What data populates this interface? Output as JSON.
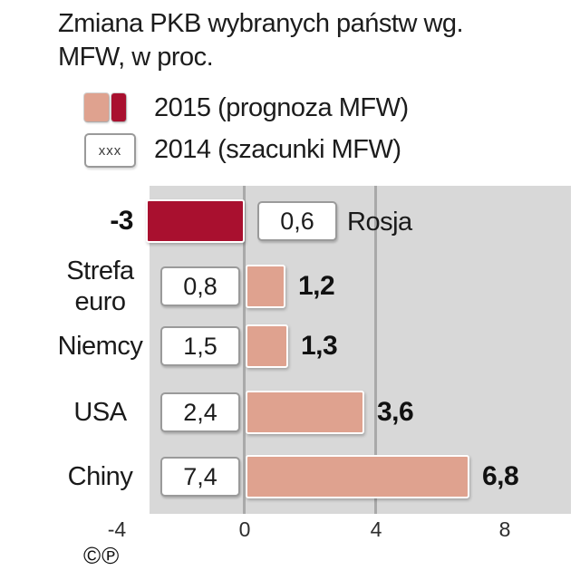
{
  "title": {
    "line1": "Zmiana PKB wybranych państw wg.",
    "line2": "MFW, w proc."
  },
  "legend": {
    "s2015": {
      "label": "2015 (prognoza MFW)"
    },
    "s2014": {
      "label": "2014 (szacunki MFW)",
      "swatch_text": "xxx"
    }
  },
  "chart_data": {
    "type": "bar",
    "orientation": "horizontal",
    "title": "Zmiana PKB wybranych państw wg. MFW, w proc.",
    "categories": [
      "Rosja",
      "Strefa euro",
      "Niemcy",
      "USA",
      "Chiny"
    ],
    "series": [
      {
        "name": "2015 (prognoza MFW)",
        "values": [
          -3,
          1.2,
          1.3,
          3.6,
          6.8
        ]
      },
      {
        "name": "2014 (szacunki MFW)",
        "values": [
          0.6,
          0.8,
          1.5,
          2.4,
          7.4
        ]
      }
    ],
    "xlim": [
      -4,
      8
    ],
    "x_ticks": [
      "-4",
      "0",
      "4",
      "8"
    ],
    "gridlines_at": [
      0,
      4
    ],
    "unit": "proc.",
    "panel_bg": "#d8d8d8",
    "colors": {
      "positive_2015": "#dfa28f",
      "negative_2015": "#a9102f",
      "gridline": "#a9a9a9"
    }
  },
  "rows": [
    {
      "country": "Rosja",
      "v2015": "-3",
      "v2014": "0,6"
    },
    {
      "country": "Strefa euro",
      "v2015": "1,2",
      "v2014": "0,8"
    },
    {
      "country": "Niemcy",
      "v2015": "1,3",
      "v2014": "1,5"
    },
    {
      "country": "USA",
      "v2015": "3,6",
      "v2014": "2,4"
    },
    {
      "country": "Chiny",
      "v2015": "6,8",
      "v2014": "7,4"
    }
  ],
  "footer": {
    "copyright": "©℗"
  }
}
